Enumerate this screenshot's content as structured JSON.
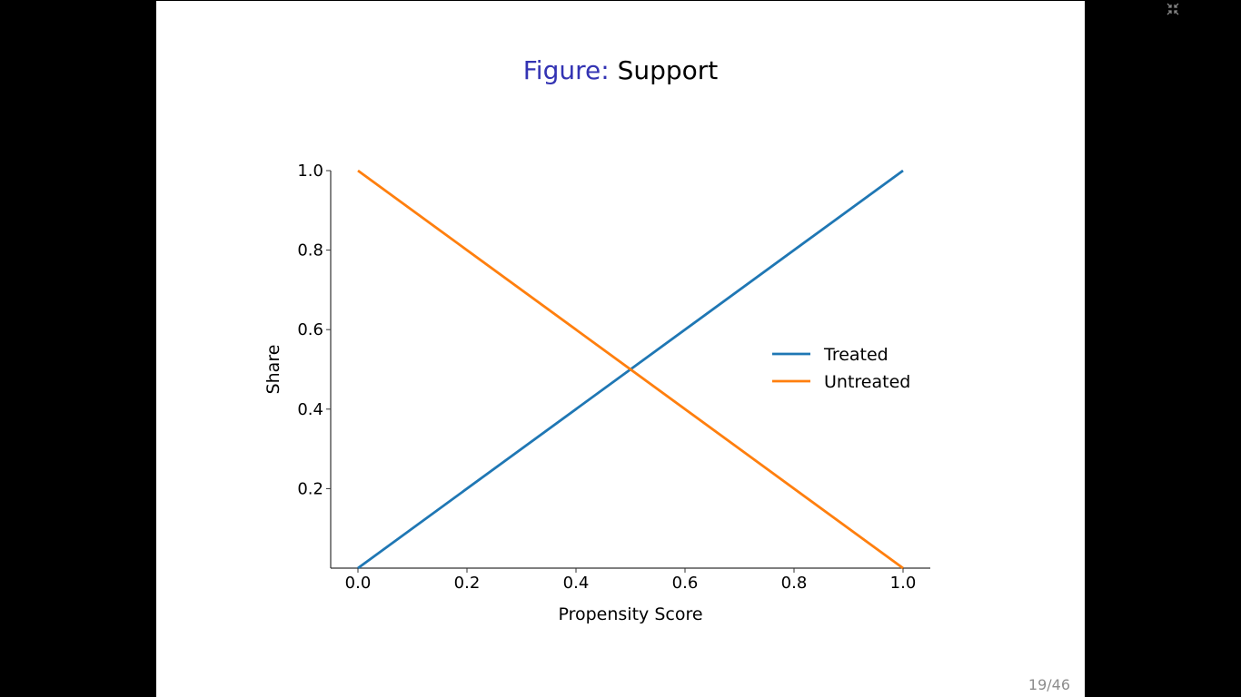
{
  "caption": {
    "label": "Figure:",
    "text": "Support"
  },
  "page": {
    "current": "19",
    "total": "46"
  },
  "colors": {
    "caption_label": "#3333b3",
    "treated": "#1f77b4",
    "untreated": "#ff7f0e",
    "axis": "#333333",
    "page_number": "#8c8c8c"
  },
  "icons": [
    "exit-fullscreen-icon"
  ],
  "chart_data": {
    "type": "line",
    "title": "",
    "xlabel": "Propensity Score",
    "ylabel": "Share",
    "xlim": [
      -0.05,
      1.05
    ],
    "ylim": [
      0.0,
      1.0
    ],
    "xticks": [
      0.0,
      0.2,
      0.4,
      0.6,
      0.8,
      1.0
    ],
    "xtick_labels": [
      "0.0",
      "0.2",
      "0.4",
      "0.6",
      "0.8",
      "1.0"
    ],
    "yticks": [
      0.2,
      0.4,
      0.6,
      0.8,
      1.0
    ],
    "ytick_labels": [
      "0.2",
      "0.4",
      "0.6",
      "0.8",
      "1.0"
    ],
    "grid": false,
    "legend": {
      "position": "center-right",
      "frame": false
    },
    "series": [
      {
        "name": "Treated",
        "color": "#1f77b4",
        "x": [
          0.0,
          1.0
        ],
        "y": [
          0.0,
          1.0
        ]
      },
      {
        "name": "Untreated",
        "color": "#ff7f0e",
        "x": [
          0.0,
          1.0
        ],
        "y": [
          1.0,
          0.0
        ]
      }
    ]
  }
}
